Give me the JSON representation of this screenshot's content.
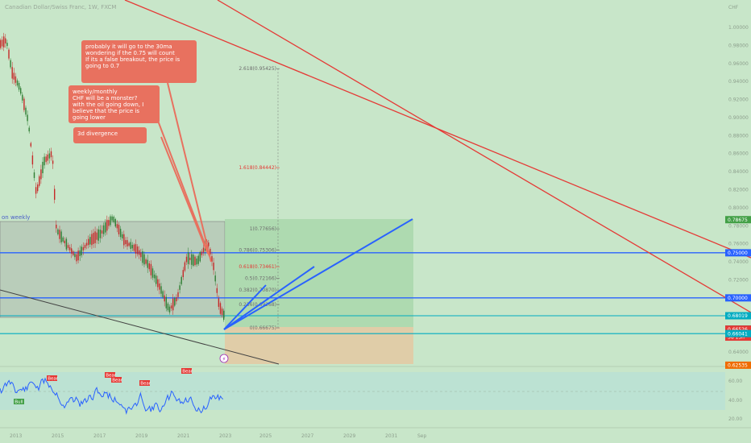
{
  "chart_data": {
    "type": "line",
    "title": "Canadian Dollar/Swiss Franc, 1W, FXCM",
    "currency": "CHF",
    "price_axis": [
      "1.00000",
      "0.98000",
      "0.96000",
      "0.94000",
      "0.92000",
      "0.90000",
      "0.88000",
      "0.86000",
      "0.84000",
      "0.82000",
      "0.80000",
      "0.78000",
      "0.76000",
      "0.74000",
      "0.72000",
      "0.70000",
      "0.68000",
      "0.66000",
      "0.64000"
    ],
    "time_axis": [
      "2013",
      "2015",
      "2017",
      "2019",
      "2021",
      "2023",
      "2025",
      "2027",
      "2029",
      "2031",
      "Sep"
    ],
    "indicator_axis": [
      "60.00",
      "40.00",
      "20.00"
    ],
    "price_badges": [
      {
        "value": "0.78675",
        "price": 0.78675,
        "color": "#43a047"
      },
      {
        "value": "0.75000",
        "price": 0.75,
        "color": "#2962ff"
      },
      {
        "value": "0.70000",
        "price": 0.7,
        "color": "#2962ff"
      },
      {
        "value": "0.68019",
        "price": 0.68019,
        "color": "#00acc1"
      },
      {
        "value": "0.66537",
        "price": 0.66537,
        "color": "#37474f"
      },
      {
        "value": "0.66526",
        "price": 0.66526,
        "color": "#e53935"
      },
      {
        "value": "3d 13h",
        "price": 0.6565,
        "color": "#e53935"
      },
      {
        "value": "0.66041",
        "price": 0.66041,
        "color": "#00acc1"
      },
      {
        "value": "0.62535",
        "price": 0.62535,
        "color": "#ef6c00"
      }
    ],
    "fib_levels": [
      {
        "label": "2.618(0.95425)",
        "price": 0.95425,
        "color": "#6d6d6d"
      },
      {
        "label": "1.618(0.84442)",
        "price": 0.84442,
        "color": "#e53935"
      },
      {
        "label": "1(0.77656)",
        "price": 0.77656,
        "color": "#6d6d6d"
      },
      {
        "label": "0.786(0.75306)",
        "price": 0.75306,
        "color": "#6d6d6d"
      },
      {
        "label": "0.618(0.73461)",
        "price": 0.73461,
        "color": "#e53935"
      },
      {
        "label": "0.5(0.72166)",
        "price": 0.72166,
        "color": "#6d6d6d"
      },
      {
        "label": "0.382(0.70870)",
        "price": 0.7087,
        "color": "#6d6d6d"
      },
      {
        "label": "0.236(0.69268)",
        "price": 0.69268,
        "color": "#6d6d6d"
      },
      {
        "label": "0(0.66675)",
        "price": 0.66675,
        "color": "#6d6d6d"
      }
    ],
    "horizontal_lines": [
      {
        "price": 0.75,
        "color": "#2962ff"
      },
      {
        "price": 0.7,
        "color": "#2962ff"
      },
      {
        "price": 0.68019,
        "color": "#00acc1"
      },
      {
        "price": 0.66041,
        "color": "#00acc1"
      }
    ],
    "range_label": "on weekly",
    "signal_labels": [
      "Bear",
      "Bear",
      "Bear",
      "Bear",
      "Bear",
      "Bull"
    ]
  },
  "notes": [
    {
      "text": "probably it will go to the 30ma\nwondering if the 0.75 will count\nIf its a false breakout, the price is going to 0.7"
    },
    {
      "text": "weekly/monthly\nCHF will be a monster?\nwith the oil going down, I believe that the price is going lower"
    },
    {
      "text": "3d divergence"
    }
  ],
  "colors": {
    "background": "#c8e6c9",
    "candles_up": "#2e7d32",
    "candles_down": "#c62828",
    "trend_red": "#e53935",
    "trend_blue": "#2962ff",
    "indicator": "#2962ff"
  }
}
